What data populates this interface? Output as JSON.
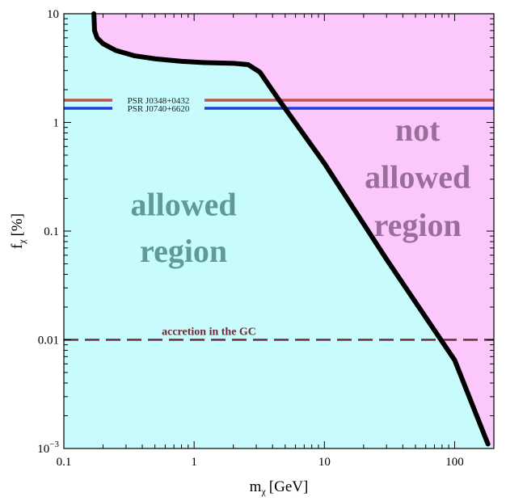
{
  "chart_data": {
    "type": "line",
    "x_scale": "log",
    "y_scale": "log",
    "xlim": [
      0.1,
      200
    ],
    "ylim": [
      0.001,
      10
    ],
    "xlabel_main": "m",
    "xlabel_sub": "χ",
    "xlabel_unit": "[GeV]",
    "ylabel_main": "f",
    "ylabel_sub": "χ",
    "ylabel_unit": "[%]",
    "x_ticks": [
      {
        "value": 0.1,
        "label": "0.1"
      },
      {
        "value": 1,
        "label": "1"
      },
      {
        "value": 10,
        "label": "10"
      },
      {
        "value": 100,
        "label": "100"
      }
    ],
    "y_ticks": [
      {
        "value": 0.001,
        "base": "10",
        "exp": "−3"
      },
      {
        "value": 0.01,
        "base": "0.01",
        "exp": ""
      },
      {
        "value": 0.1,
        "base": "0.1",
        "exp": ""
      },
      {
        "value": 1,
        "base": "1",
        "exp": ""
      },
      {
        "value": 10,
        "base": "10",
        "exp": ""
      }
    ],
    "grid": false,
    "boundary": {
      "color": "#000000",
      "x": [
        0.17,
        0.172,
        0.18,
        0.2,
        0.25,
        0.35,
        0.5,
        0.8,
        1.2,
        2.0,
        2.6,
        3.2,
        4.5,
        10,
        30,
        100,
        180
      ],
      "y": [
        10,
        7.0,
        6.0,
        5.3,
        4.6,
        4.1,
        3.85,
        3.65,
        3.55,
        3.5,
        3.4,
        2.9,
        1.6,
        0.42,
        0.055,
        0.0065,
        0.0011
      ]
    },
    "horizontal_lines": [
      {
        "name": "PSR J0348+0432",
        "y": 1.6,
        "color": "#c0504d",
        "style": "solid"
      },
      {
        "name": "PSR J0740+6620",
        "y": 1.35,
        "color": "#1f3fdc",
        "style": "solid"
      },
      {
        "name": "accretion in the GC",
        "y": 0.01,
        "color": "#6e2a35",
        "style": "dashed"
      }
    ],
    "regions": {
      "allowed": {
        "line1": "allowed",
        "line2": "region",
        "fill": "#c8fbfb",
        "text_color": "#5e9a98"
      },
      "not_allowed": {
        "line1": "not",
        "line2": "allowed",
        "line3": "region",
        "fill": "#fcc8fc",
        "text_color": "#9a6e9a"
      }
    }
  }
}
